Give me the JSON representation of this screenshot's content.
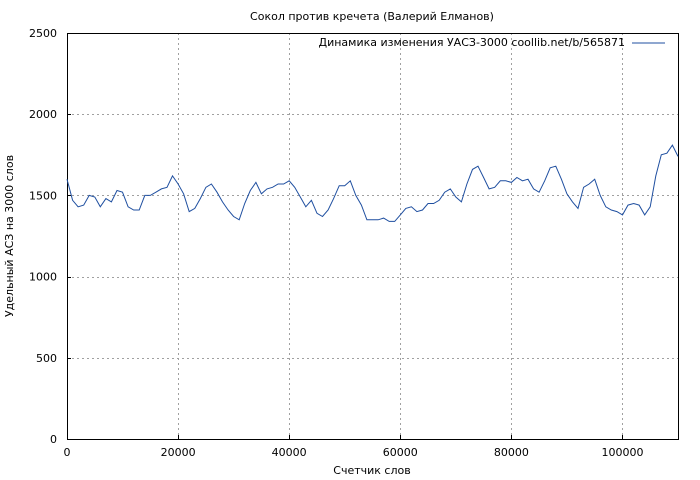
{
  "chart_data": {
    "type": "line",
    "title": "Сокол против кречета (Валерий Елманов)",
    "xlabel": "Счетчик слов",
    "ylabel": "Удельный АСЗ на 3000 слов",
    "xlim": [
      0,
      110000
    ],
    "ylim": [
      0,
      2500
    ],
    "x_ticks": [
      0,
      20000,
      40000,
      60000,
      80000,
      100000
    ],
    "y_ticks": [
      0,
      500,
      1000,
      1500,
      2000,
      2500
    ],
    "grid": true,
    "legend_position": "top-right",
    "series": [
      {
        "name": "Динамика изменения УАСЗ-3000 coollib.net/b/565871",
        "color": "#1f4fa0",
        "x": [
          0,
          1000,
          2000,
          3000,
          4000,
          5000,
          6000,
          7000,
          8000,
          9000,
          10000,
          11000,
          12000,
          13000,
          14000,
          15000,
          16000,
          17000,
          18000,
          19000,
          20000,
          21000,
          22000,
          23000,
          24000,
          25000,
          26000,
          27000,
          28000,
          29000,
          30000,
          31000,
          32000,
          33000,
          34000,
          35000,
          36000,
          37000,
          38000,
          39000,
          40000,
          41000,
          42000,
          43000,
          44000,
          45000,
          46000,
          47000,
          48000,
          49000,
          50000,
          51000,
          52000,
          53000,
          54000,
          55000,
          56000,
          57000,
          58000,
          59000,
          60000,
          61000,
          62000,
          63000,
          64000,
          65000,
          66000,
          67000,
          68000,
          69000,
          70000,
          71000,
          72000,
          73000,
          74000,
          75000,
          76000,
          77000,
          78000,
          79000,
          80000,
          81000,
          82000,
          83000,
          84000,
          85000,
          86000,
          87000,
          88000,
          89000,
          90000,
          91000,
          92000,
          93000,
          94000,
          95000,
          96000,
          97000,
          98000,
          99000,
          100000,
          101000,
          102000,
          103000,
          104000,
          105000,
          106000,
          107000,
          108000,
          109000,
          110000
        ],
        "values": [
          1600,
          1470,
          1430,
          1440,
          1500,
          1490,
          1430,
          1480,
          1460,
          1530,
          1520,
          1430,
          1410,
          1410,
          1500,
          1500,
          1520,
          1540,
          1550,
          1620,
          1570,
          1510,
          1400,
          1420,
          1480,
          1550,
          1570,
          1520,
          1460,
          1410,
          1370,
          1350,
          1450,
          1530,
          1580,
          1510,
          1540,
          1550,
          1570,
          1570,
          1590,
          1550,
          1490,
          1430,
          1470,
          1390,
          1370,
          1410,
          1480,
          1560,
          1560,
          1590,
          1500,
          1440,
          1350,
          1350,
          1350,
          1360,
          1340,
          1340,
          1380,
          1420,
          1430,
          1400,
          1410,
          1450,
          1450,
          1470,
          1520,
          1540,
          1490,
          1460,
          1570,
          1660,
          1680,
          1610,
          1540,
          1550,
          1590,
          1590,
          1580,
          1610,
          1590,
          1600,
          1540,
          1520,
          1590,
          1670,
          1680,
          1600,
          1510,
          1460,
          1420,
          1550,
          1570,
          1600,
          1500,
          1430,
          1410,
          1400,
          1380,
          1440,
          1450,
          1440,
          1380,
          1430,
          1620,
          1750,
          1760,
          1810,
          1740
        ]
      }
    ]
  }
}
